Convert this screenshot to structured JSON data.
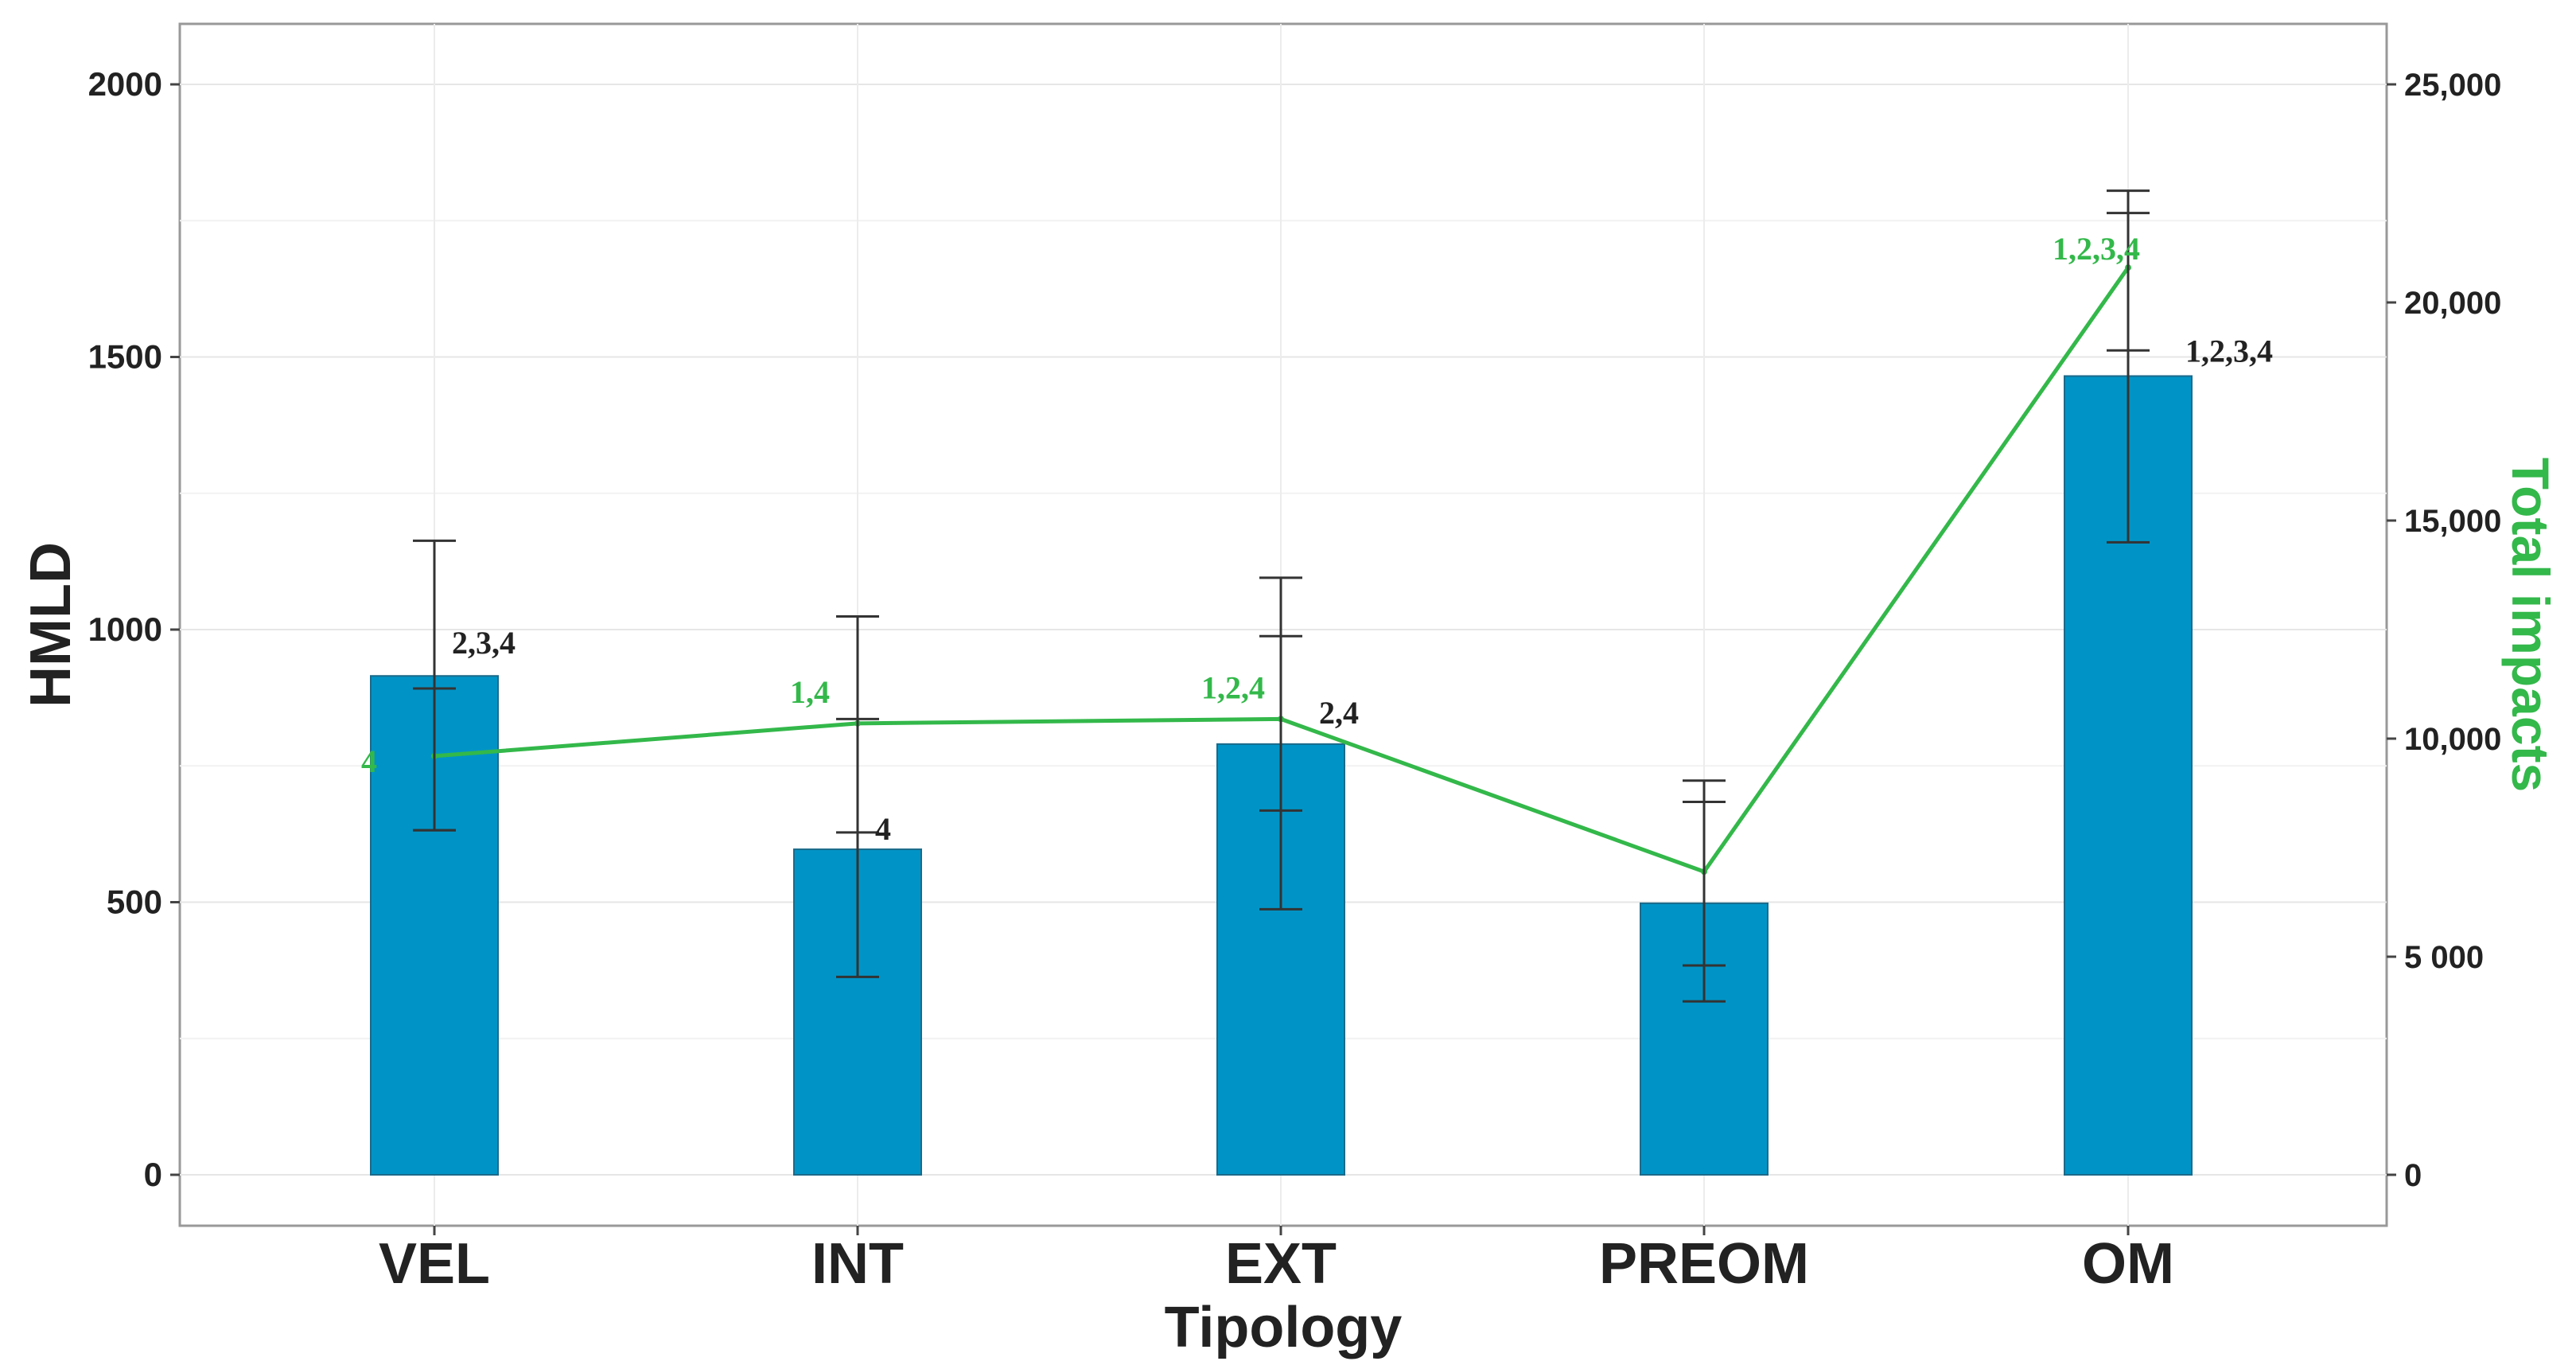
{
  "chart_data": {
    "type": "bar",
    "categories": [
      "VEL",
      "INT",
      "EXT",
      "PREOM",
      "OM"
    ],
    "xlabel": "Tipology",
    "ylabel": "HMLD",
    "y2label": "Total impacts",
    "ylim": [
      0,
      2000
    ],
    "y2lim": [
      0,
      25000
    ],
    "yticks": [
      "0",
      "500",
      "1000",
      "1500",
      "2000"
    ],
    "y2ticks": [
      "0",
      "5 000",
      "10,000",
      "15,000",
      "20,000",
      "25,000"
    ],
    "grid": true,
    "series": [
      {
        "name": "HMLD",
        "kind": "bar",
        "axis": "left",
        "color": "#0094C6",
        "values": [
          915,
          597,
          790,
          498,
          1465
        ],
        "error_low": [
          632,
          363,
          487,
          318,
          1160
        ],
        "error_high": [
          1163,
          1024,
          1095,
          723,
          1805
        ],
        "annotations": [
          "2,3,4",
          "4",
          "2,4",
          "",
          "1,2,3,4"
        ],
        "annotation_color": "#222222"
      },
      {
        "name": "Total impacts",
        "kind": "line",
        "axis": "right",
        "color": "#33B84A",
        "values": [
          9600,
          10350,
          10450,
          6950,
          20800
        ],
        "error_low": [
          7900,
          7850,
          8350,
          4800,
          18900
        ],
        "error_high": [
          11150,
          10450,
          12350,
          8550,
          22050
        ],
        "annotations": [
          "4",
          "1,4",
          "1,2,4",
          "",
          "1,2,3,4"
        ],
        "annotation_color": "#33B84A"
      }
    ]
  }
}
